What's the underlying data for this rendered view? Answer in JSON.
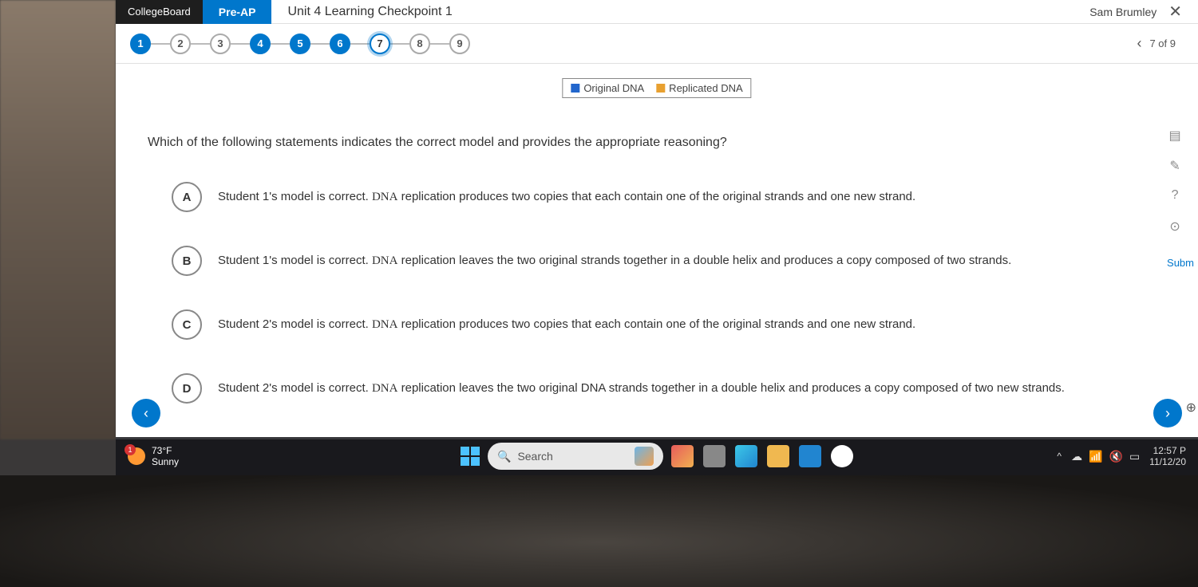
{
  "header": {
    "brand": "CollegeBoard",
    "program": "Pre-AP",
    "title": "Unit 4 Learning Checkpoint 1",
    "user": "Sam Brumley"
  },
  "progress": {
    "steps": [
      {
        "num": "1",
        "state": "filled"
      },
      {
        "num": "2",
        "state": "outline"
      },
      {
        "num": "3",
        "state": "outline"
      },
      {
        "num": "4",
        "state": "filled"
      },
      {
        "num": "5",
        "state": "filled"
      },
      {
        "num": "6",
        "state": "filled"
      },
      {
        "num": "7",
        "state": "current"
      },
      {
        "num": "8",
        "state": "outline"
      },
      {
        "num": "9",
        "state": "outline"
      }
    ],
    "counter": "7 of 9"
  },
  "legend": {
    "items": [
      {
        "label": "Original DNA",
        "color": "#2266cc"
      },
      {
        "label": "Replicated DNA",
        "color": "#e8a030"
      }
    ]
  },
  "question": {
    "prompt": "Which of the following statements indicates the correct model and provides the appropriate reasoning?",
    "options": [
      {
        "letter": "A",
        "text_pre": "Student 1's model is correct. ",
        "text_dna": "DNA",
        "text_post": " replication produces two copies that each contain one of the original strands and one new strand."
      },
      {
        "letter": "B",
        "text_pre": "Student 1's model is correct. ",
        "text_dna": "DNA",
        "text_post": " replication leaves the two original strands together in a double helix and produces a copy composed of two strands."
      },
      {
        "letter": "C",
        "text_pre": "Student 2's model is correct. ",
        "text_dna": "DNA",
        "text_post": " replication produces two copies that each contain one of the original strands and one new strand."
      },
      {
        "letter": "D",
        "text_pre": "Student 2's model is correct. ",
        "text_dna": "DNA",
        "text_post": " replication leaves the two original DNA strands together in a double helix and produces a copy composed of two new strands."
      }
    ]
  },
  "sidepanel": {
    "submit_label": "Subm"
  },
  "taskbar": {
    "weather": {
      "badge": "1",
      "temp": "73°F",
      "desc": "Sunny"
    },
    "search_placeholder": "Search",
    "clock": {
      "time": "12:57 P",
      "date": "11/12/20"
    }
  }
}
